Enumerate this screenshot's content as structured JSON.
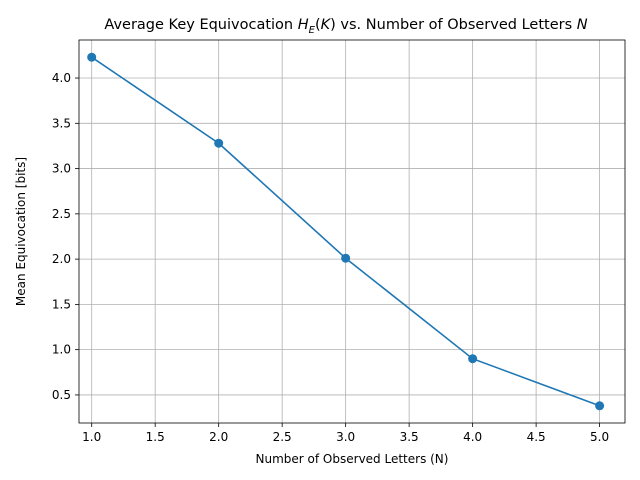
{
  "chart_data": {
    "type": "line",
    "title": {
      "prefix": "Average Key Equivocation ",
      "H": "H",
      "sub": "E",
      "paren_open": "(",
      "K": "K",
      "mid": ") vs. Number of Observed Letters ",
      "N": "N"
    },
    "xlabel": "Number of Observed Letters (N)",
    "ylabel": "Mean Equivocation [bits]",
    "x": [
      1,
      2,
      3,
      4,
      5
    ],
    "series": [
      {
        "values": [
          4.23,
          3.28,
          2.01,
          0.9,
          0.38
        ]
      }
    ],
    "xlim": [
      0.9,
      5.2
    ],
    "ylim": [
      0.19,
      4.42
    ],
    "xticks": [
      "1.0",
      "1.5",
      "2.0",
      "2.5",
      "3.0",
      "3.5",
      "4.0",
      "4.5",
      "5.0"
    ],
    "xtick_values": [
      1.0,
      1.5,
      2.0,
      2.5,
      3.0,
      3.5,
      4.0,
      4.5,
      5.0
    ],
    "yticks": [
      "0.5",
      "1.0",
      "1.5",
      "2.0",
      "2.5",
      "3.0",
      "3.5",
      "4.0"
    ],
    "ytick_values": [
      0.5,
      1.0,
      1.5,
      2.0,
      2.5,
      3.0,
      3.5,
      4.0
    ],
    "grid": true,
    "line_color": "#1f77b4",
    "marker": "circle"
  }
}
